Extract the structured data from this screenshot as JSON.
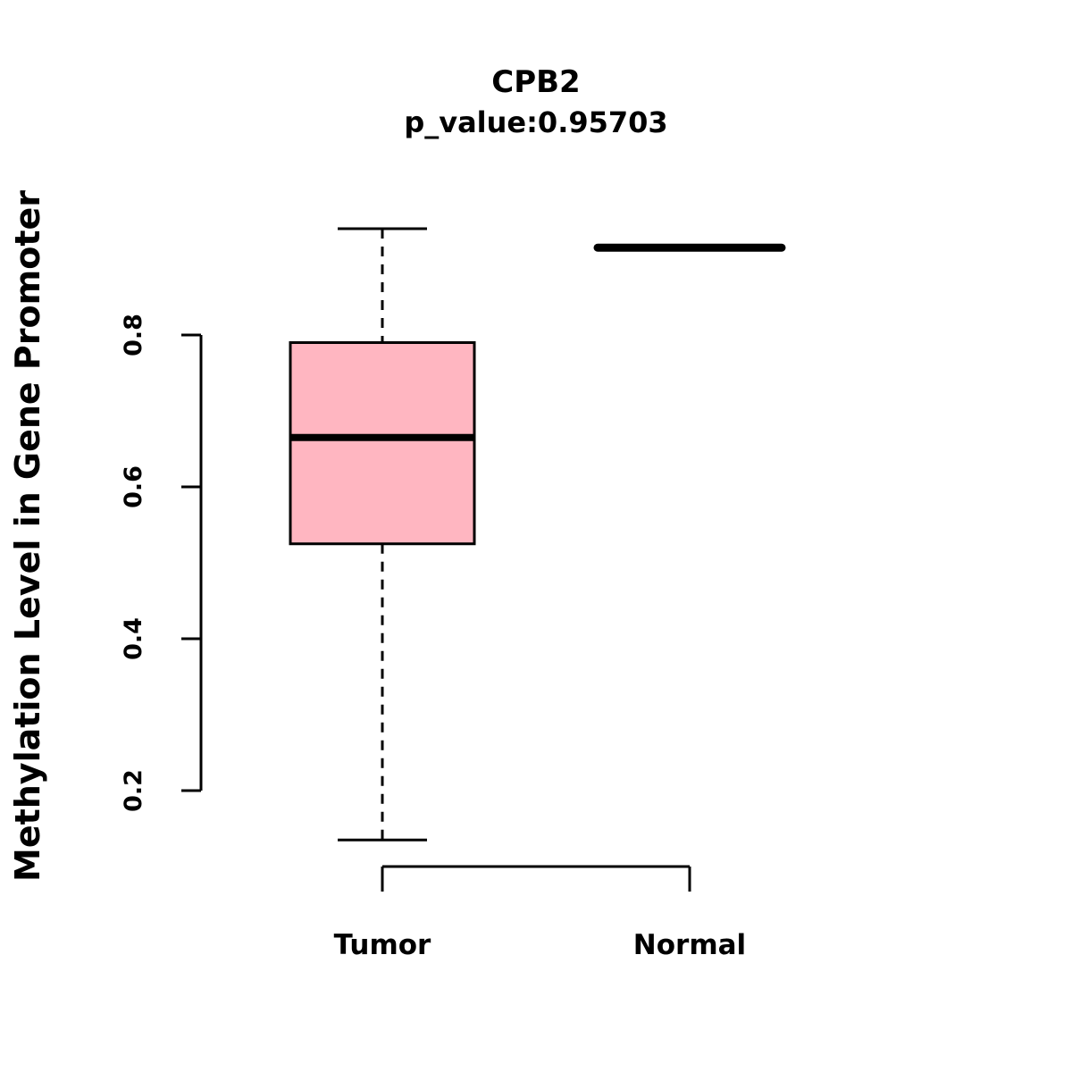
{
  "chart_data": {
    "type": "boxplot",
    "title": "CPB2",
    "subtitle": "p_value:0.95703",
    "ylabel": "Methylation Level in Gene Promoter",
    "categories": [
      "Tumor",
      "Normal"
    ],
    "y_ticks": [
      0.2,
      0.4,
      0.6,
      0.8
    ],
    "ylim": [
      0.1,
      0.97
    ],
    "grid": false,
    "legend": "none",
    "groups": [
      {
        "label": "Tumor",
        "lower_whisker": 0.135,
        "q1": 0.525,
        "median": 0.665,
        "q3": 0.79,
        "upper_whisker": 0.94
      },
      {
        "label": "Normal",
        "lower_whisker": 0.915,
        "q1": 0.915,
        "median": 0.915,
        "q3": 0.915,
        "upper_whisker": 0.915
      }
    ],
    "colors": {
      "box_fill": "#ffb6c1",
      "line": "#000000"
    }
  }
}
